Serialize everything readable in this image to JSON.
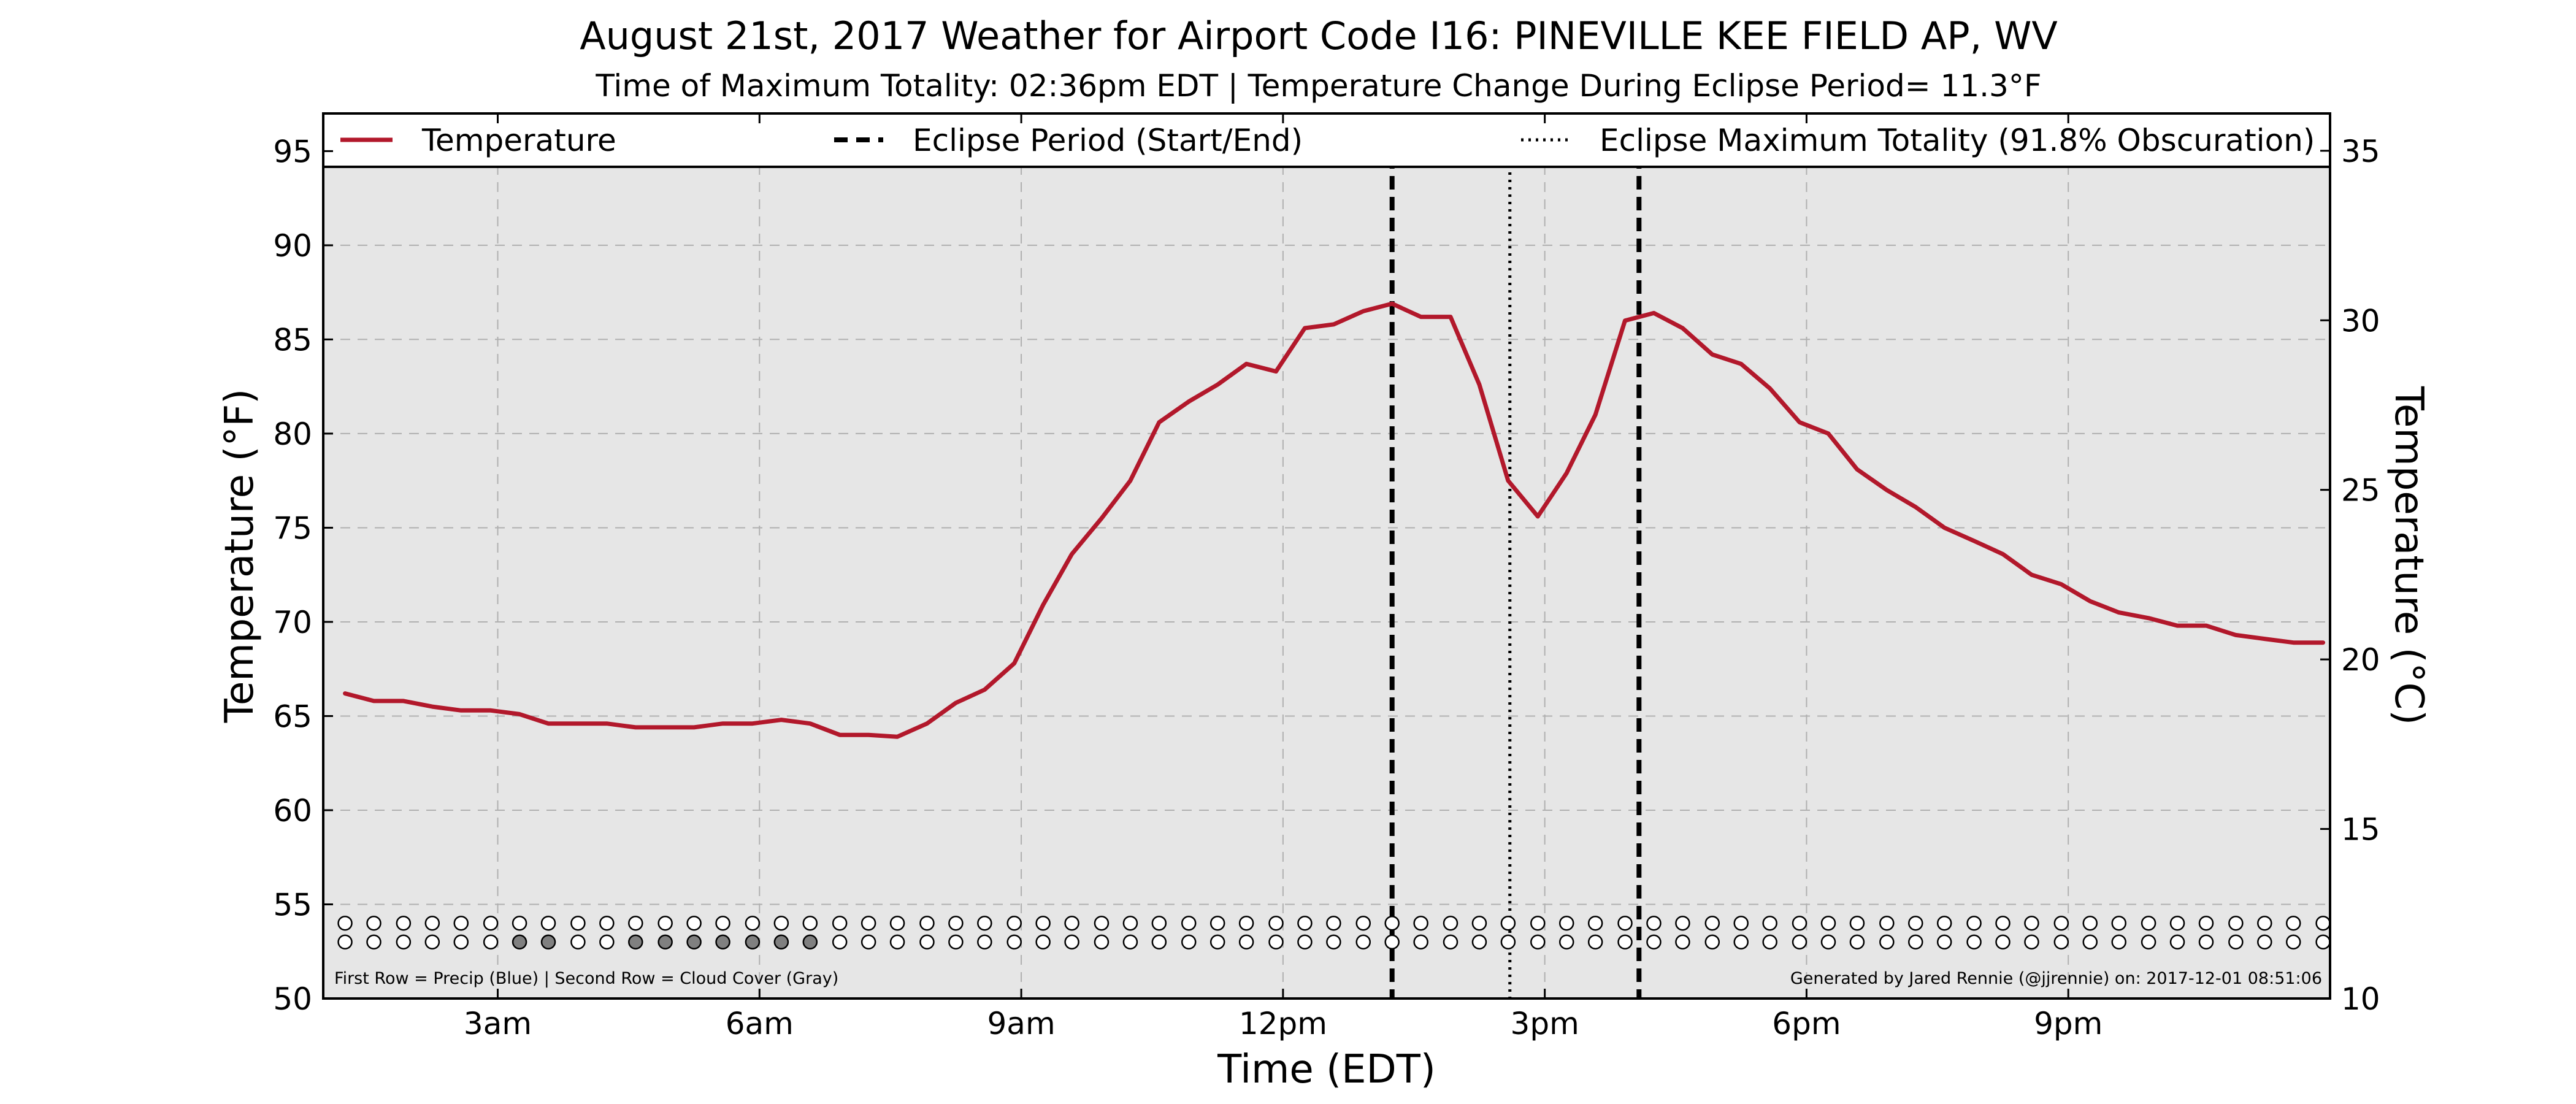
{
  "chart_data": {
    "type": "line",
    "title": "August 21st, 2017 Weather for Airport Code I16: PINEVILLE KEE FIELD AP, WV",
    "subtitle": "Time of Maximum Totality: 02:36pm EDT | Temperature Change During Eclipse Period= 11.3°F",
    "xlabel": "Time (EDT)",
    "ylabel_left": "Temperature (°F)",
    "ylabel_right": "Temperature (°C)",
    "xlim": [
      1.0,
      24.0
    ],
    "ylim": [
      50,
      97
    ],
    "ylim_celsius": [
      10,
      36.1
    ],
    "grid": true,
    "legend_position": "top",
    "legend": [
      {
        "label": "Temperature",
        "style": "solid",
        "color": "#b2182b"
      },
      {
        "label": "Eclipse Period (Start/End)",
        "style": "dashed",
        "color": "#000000"
      },
      {
        "label": "Eclipse Maximum Totality (91.8% Obscuration)",
        "style": "dotted",
        "color": "#000000"
      }
    ],
    "x_ticks": [
      {
        "label": "3am",
        "value": 3
      },
      {
        "label": "6am",
        "value": 6
      },
      {
        "label": "9am",
        "value": 9
      },
      {
        "label": "12pm",
        "value": 12
      },
      {
        "label": "3pm",
        "value": 15
      },
      {
        "label": "6pm",
        "value": 18
      },
      {
        "label": "9pm",
        "value": 21
      }
    ],
    "y_ticks_left": [
      "50",
      "55",
      "60",
      "65",
      "70",
      "75",
      "80",
      "85",
      "90",
      "95"
    ],
    "y_ticks_right": [
      "10",
      "15",
      "20",
      "25",
      "30",
      "35"
    ],
    "eclipse_start_hour": 13.25,
    "eclipse_end_hour": 16.08,
    "max_totality_hour": 14.6,
    "series": [
      {
        "name": "Temperature",
        "color": "#b2182b",
        "x": [
          1.25,
          1.58,
          1.92,
          2.25,
          2.58,
          2.92,
          3.25,
          3.58,
          3.92,
          4.25,
          4.58,
          4.92,
          5.25,
          5.58,
          5.92,
          6.25,
          6.58,
          6.92,
          7.25,
          7.58,
          7.92,
          8.25,
          8.58,
          8.92,
          9.25,
          9.58,
          9.92,
          10.25,
          10.58,
          10.92,
          11.25,
          11.58,
          11.92,
          12.25,
          12.58,
          12.92,
          13.25,
          13.58,
          13.92,
          14.25,
          14.58,
          14.92,
          15.25,
          15.58,
          15.92,
          16.25,
          16.58,
          16.92,
          17.25,
          17.58,
          17.92,
          18.25,
          18.58,
          18.92,
          19.25,
          19.58,
          19.92,
          20.25,
          20.58,
          20.92,
          21.25,
          21.58,
          21.92,
          22.25,
          22.58,
          22.92,
          23.25,
          23.58,
          23.92
        ],
        "y": [
          66.2,
          65.8,
          65.8,
          65.5,
          65.3,
          65.3,
          65.1,
          64.6,
          64.6,
          64.6,
          64.4,
          64.4,
          64.4,
          64.6,
          64.6,
          64.8,
          64.6,
          64.0,
          64.0,
          63.9,
          64.6,
          65.7,
          66.4,
          67.8,
          70.9,
          73.6,
          75.5,
          77.5,
          80.6,
          81.7,
          82.6,
          83.7,
          83.3,
          85.6,
          85.8,
          86.5,
          86.9,
          86.2,
          86.2,
          82.6,
          77.5,
          75.6,
          77.9,
          81.0,
          86.0,
          86.4,
          85.6,
          84.2,
          83.7,
          82.4,
          80.6,
          80.0,
          78.1,
          77.0,
          76.1,
          75.0,
          74.3,
          73.6,
          72.5,
          72.0,
          71.1,
          70.5,
          70.2,
          69.8,
          69.8,
          69.3,
          69.1,
          68.9,
          68.9
        ]
      }
    ],
    "markers": {
      "times": [
        1.25,
        1.58,
        1.92,
        2.25,
        2.58,
        2.92,
        3.25,
        3.58,
        3.92,
        4.25,
        4.58,
        4.92,
        5.25,
        5.58,
        5.92,
        6.25,
        6.58,
        6.92,
        7.25,
        7.58,
        7.92,
        8.25,
        8.58,
        8.92,
        9.25,
        9.58,
        9.92,
        10.25,
        10.58,
        10.92,
        11.25,
        11.58,
        11.92,
        12.25,
        12.58,
        12.92,
        13.25,
        13.58,
        13.92,
        14.25,
        14.58,
        14.92,
        15.25,
        15.58,
        15.92,
        16.25,
        16.58,
        16.92,
        17.25,
        17.58,
        17.92,
        18.25,
        18.58,
        18.92,
        19.25,
        19.58,
        19.92,
        20.25,
        20.58,
        20.92,
        21.25,
        21.58,
        21.92,
        22.25,
        22.58,
        22.92,
        23.25,
        23.58,
        23.92
      ],
      "precip_row_level": 54,
      "cloud_row_level": 53,
      "precip_filled": [],
      "cloud_cover_filled": [
        3.25,
        3.58,
        4.58,
        4.92,
        5.25,
        5.58,
        5.92,
        6.25,
        6.58
      ],
      "precip_color": "#1f4e9c",
      "cloud_color": "#808080"
    },
    "footnote_left": "First Row = Precip (Blue) | Second Row = Cloud Cover (Gray)",
    "footnote_right": "Generated by Jared Rennie (@jjrennie) on: 2017-12-01 08:51:06"
  },
  "colors": {
    "plot_background": "#e6e6e6",
    "line": "#b2182b",
    "grid": "#b0b0b0"
  }
}
